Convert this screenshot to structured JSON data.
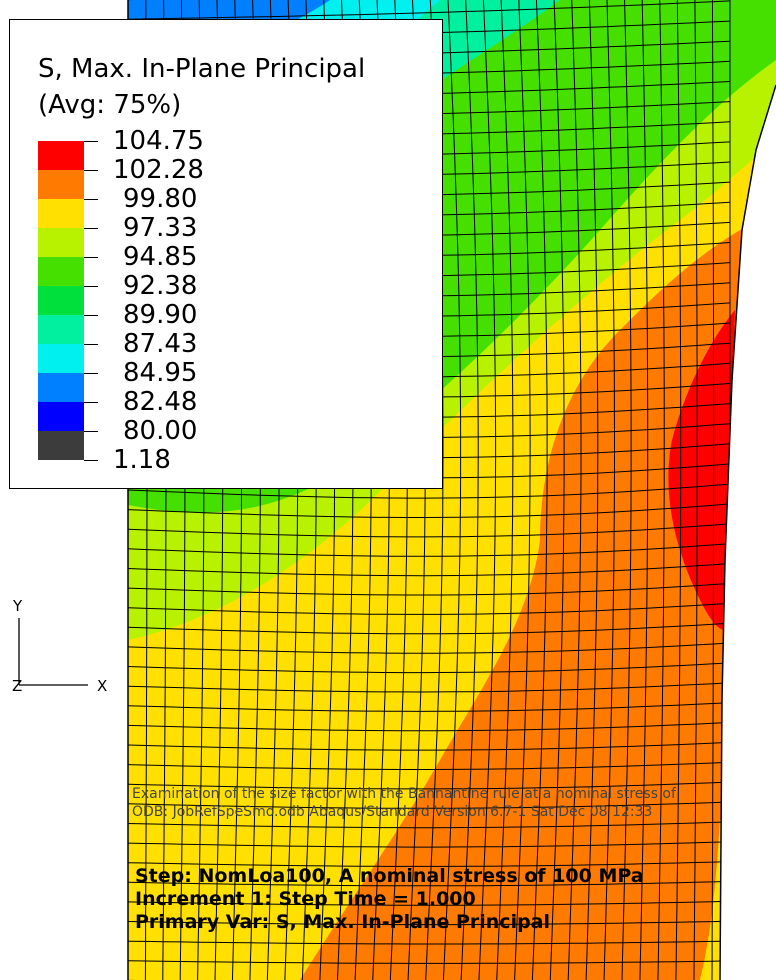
{
  "legend": {
    "title_line1": "S, Max. In-Plane Principal",
    "title_line2": "(Avg: 75%)",
    "values": [
      "104.75",
      "102.28",
      "99.80",
      "97.33",
      "94.85",
      "92.38",
      "89.90",
      "87.43",
      "84.95",
      "82.48",
      "80.00",
      "1.18"
    ],
    "colors": [
      "#ff0000",
      "#ff7a00",
      "#ffe000",
      "#b8f200",
      "#46e000",
      "#00e03c",
      "#00f0a0",
      "#00f0f0",
      "#0080ff",
      "#0000ff",
      "#3c3c3c"
    ]
  },
  "header": {
    "line1": "Examination of the size factor with the Bannantine rule at a nominal stress of",
    "line2": "ODB: JobRefSpeSmo.odb    Abaqus/Standard Version 6.7-1    Sat Dec 08 12:33"
  },
  "status": {
    "step": "Step: NomLoa100, A nominal stress of 100 MPa",
    "increment": "Increment      1: Step Time =     1.000",
    "primary_var": "Primary Var: S, Max. In-Plane Principal"
  },
  "triad": {
    "y": "Y",
    "z": "Z",
    "x": "X"
  }
}
